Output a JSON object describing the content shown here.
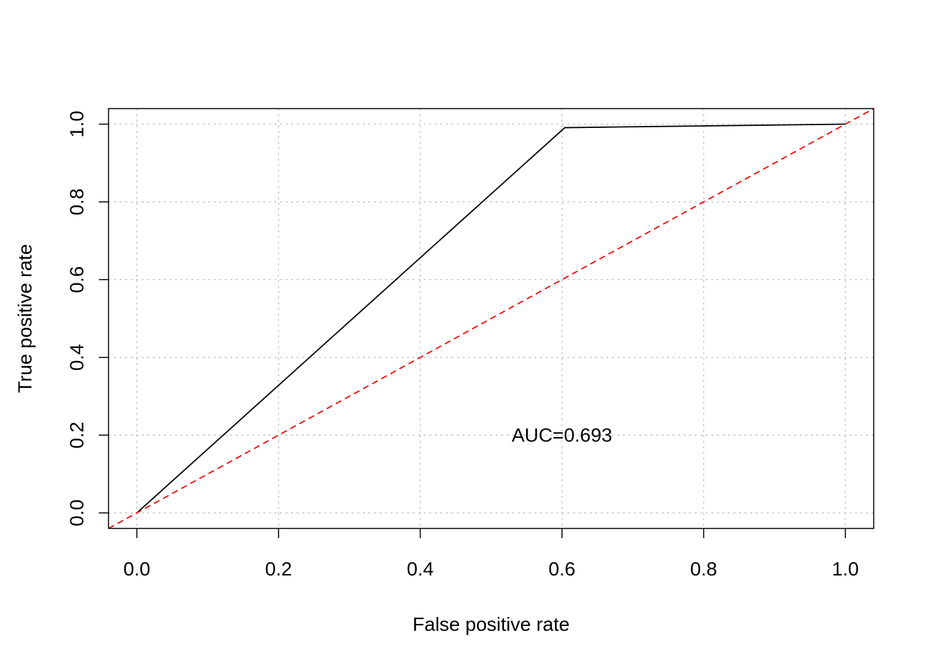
{
  "chart_data": {
    "type": "line",
    "title": "",
    "xlabel": "False positive rate",
    "ylabel": "True positive rate",
    "xlim": [
      -0.04,
      1.04
    ],
    "ylim": [
      -0.04,
      1.04
    ],
    "x_ticks": [
      "0.0",
      "0.2",
      "0.4",
      "0.6",
      "0.8",
      "1.0"
    ],
    "y_ticks": [
      "0.0",
      "0.2",
      "0.4",
      "0.6",
      "0.8",
      "1.0"
    ],
    "x_tick_values": [
      0,
      0.2,
      0.4,
      0.6,
      0.8,
      1.0
    ],
    "y_tick_values": [
      0,
      0.2,
      0.4,
      0.6,
      0.8,
      1.0
    ],
    "grid": true,
    "series": [
      {
        "x": [
          0,
          0.604,
          1.0
        ],
        "y": [
          0,
          0.991,
          1.0
        ],
        "color": "#000000",
        "linestyle": "solid"
      },
      {
        "x": [
          -0.04,
          1.04
        ],
        "y": [
          -0.04,
          1.04
        ],
        "color": "#ff0000",
        "linestyle": "dashed"
      }
    ],
    "annotations": [
      {
        "text": "AUC=0.693",
        "x": 0.6,
        "y": 0.2
      }
    ]
  }
}
